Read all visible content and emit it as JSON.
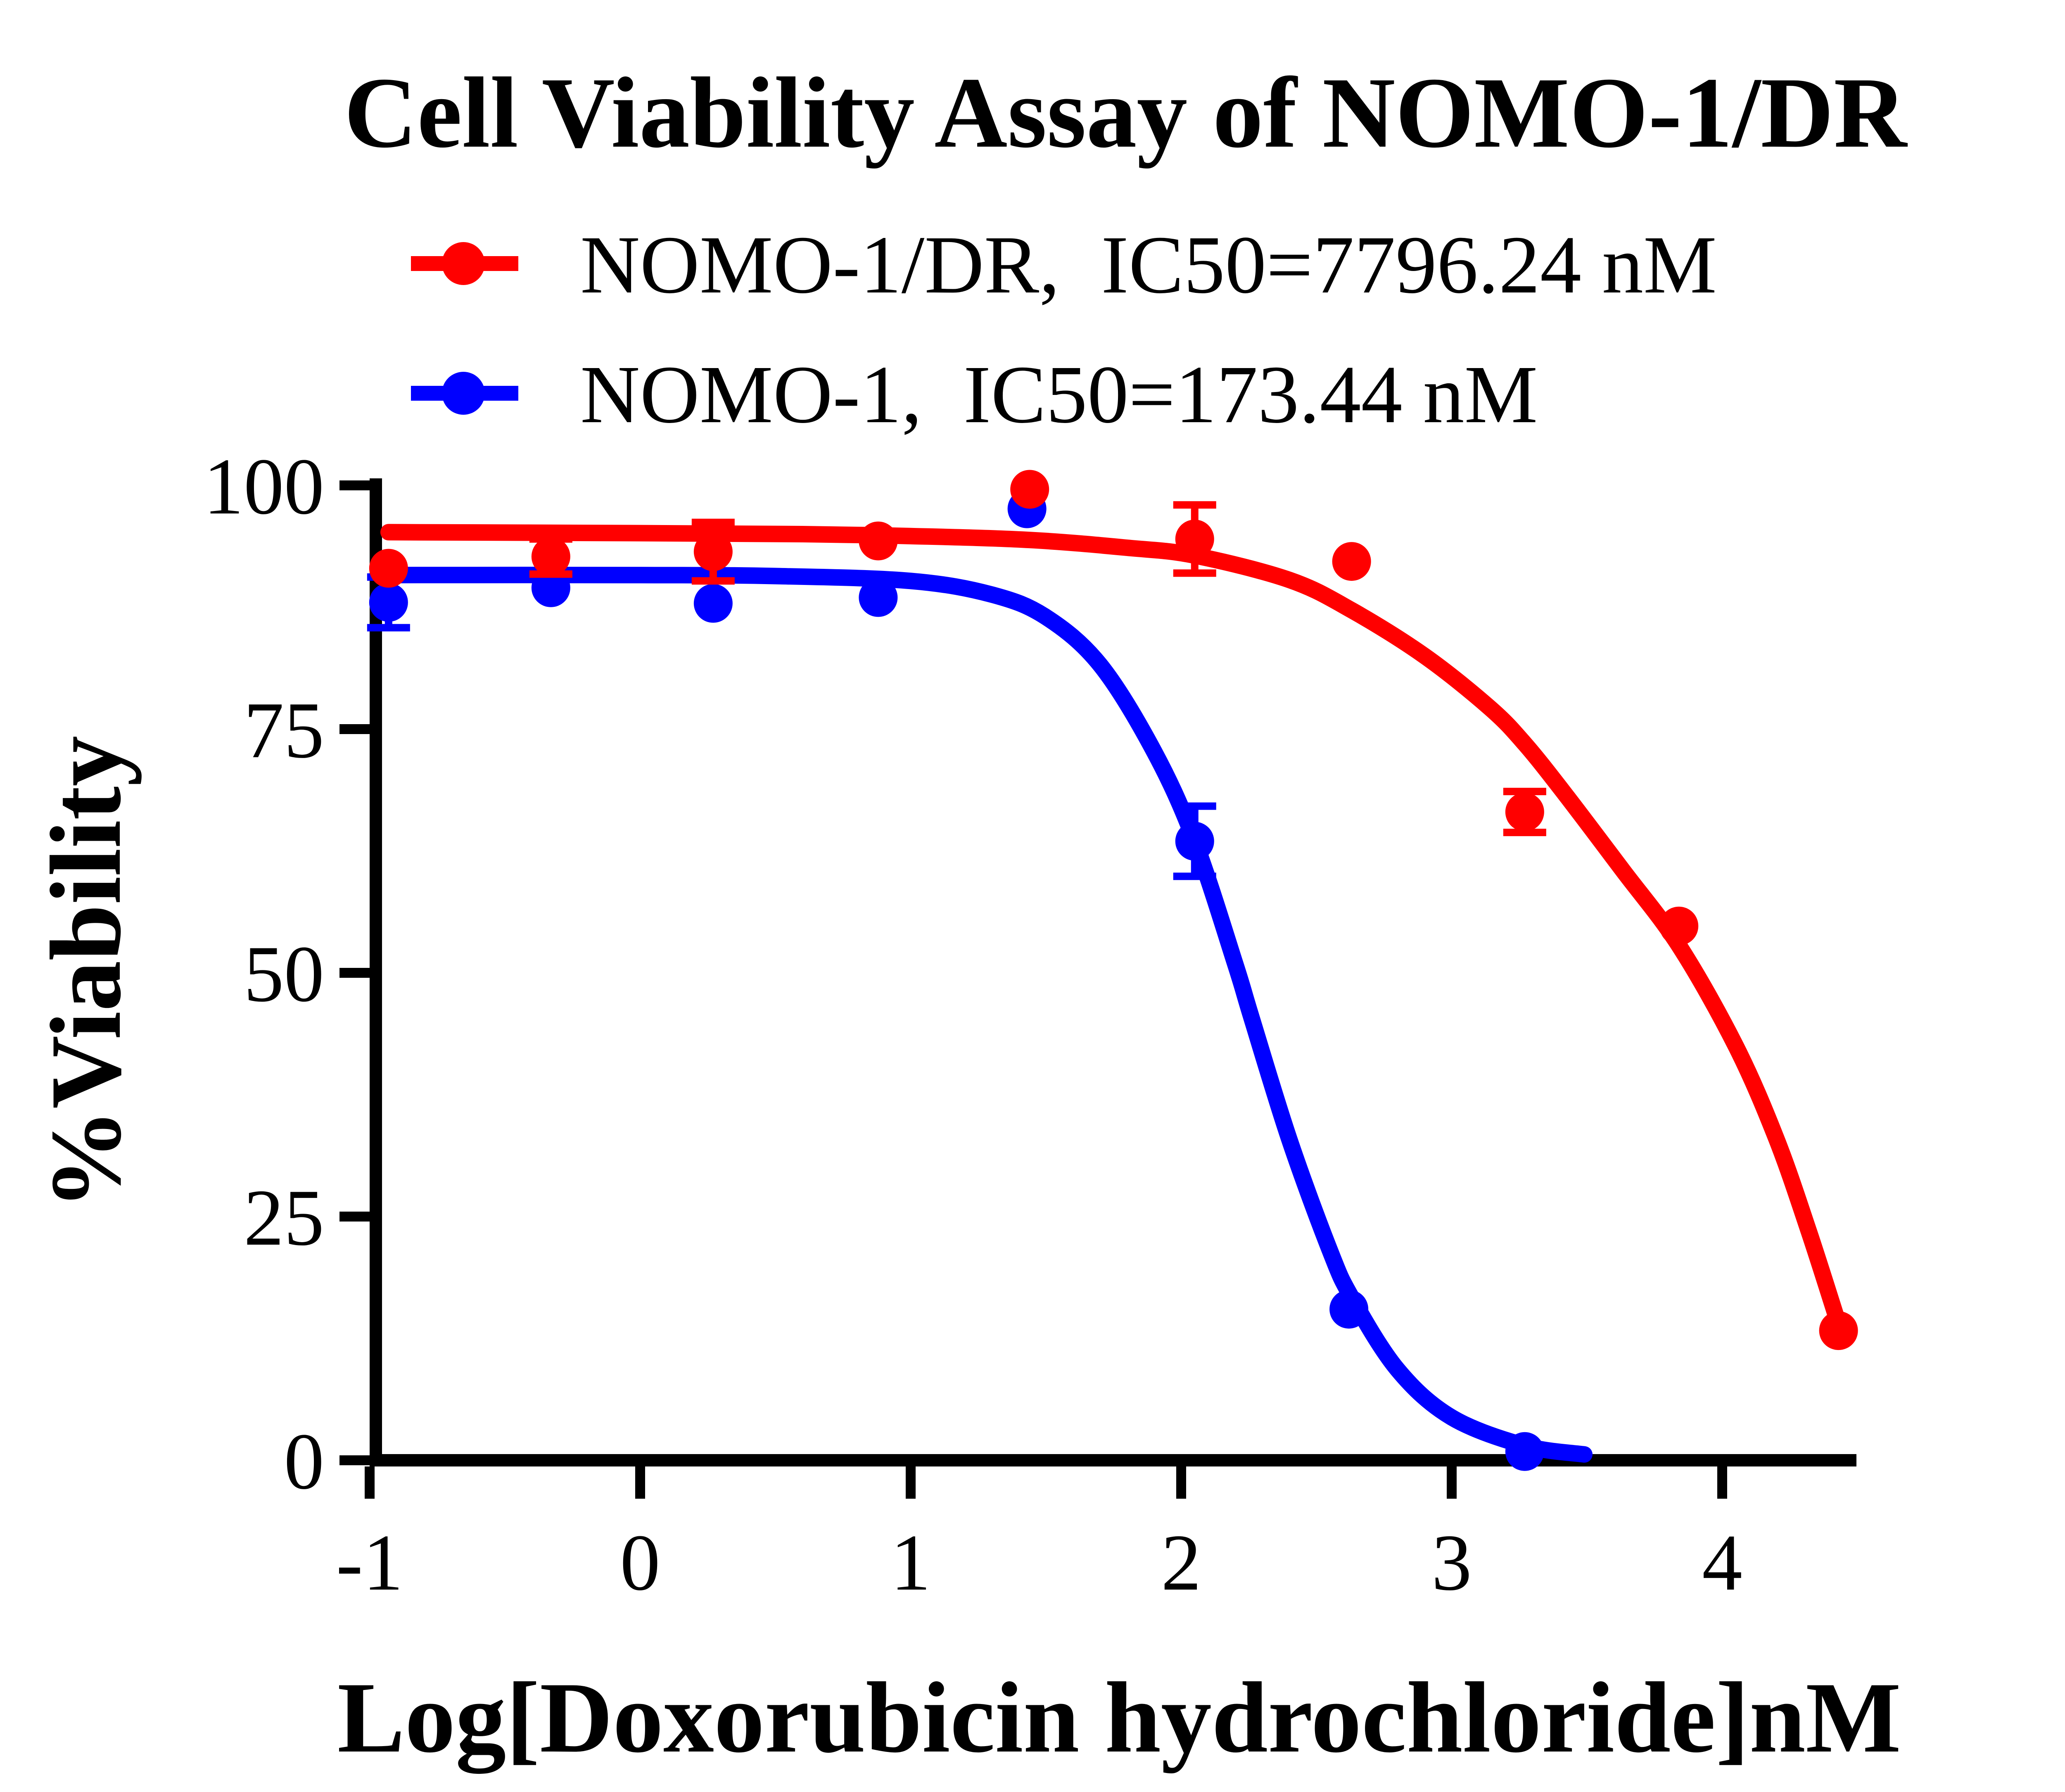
{
  "title": "Cell Viability Assay of NOMO-1/DR",
  "colors": {
    "red": "#FF0000",
    "blue": "#0000FF",
    "axis": "#000000",
    "background": "#FFFFFF"
  },
  "legend": [
    {
      "name": "NOMO-1/DR",
      "label": "NOMO-1/DR,  IC50=7796.24 nM",
      "ic50": "7796.24 nM",
      "color_key": "red"
    },
    {
      "name": "NOMO-1",
      "label": "NOMO-1,  IC50=173.44 nM",
      "ic50": "173.44 nM",
      "color_key": "blue"
    }
  ],
  "chart_data": {
    "type": "scatter",
    "title": "Cell Viability Assay of NOMO-1/DR",
    "xlabel": "Log[Doxorubicin hydrochloride]nM",
    "ylabel": "%Viability",
    "xlim": [
      -1.15,
      4.62
    ],
    "ylim": [
      0,
      100
    ],
    "x_ticks": [
      -1,
      0,
      1,
      2,
      3,
      4
    ],
    "y_ticks": [
      0,
      25,
      50,
      75,
      100
    ],
    "grid": false,
    "legend_position": "top-left",
    "series": [
      {
        "name": "NOMO-1/DR",
        "ic50_nM": 7796.24,
        "color": "#FF0000",
        "points": [
          {
            "x": -0.93,
            "y": 91.5,
            "err": 0
          },
          {
            "x": -0.33,
            "y": 92.7,
            "err": 1.8
          },
          {
            "x": 0.27,
            "y": 93.2,
            "err": 3.0
          },
          {
            "x": 0.88,
            "y": 94.3,
            "err": 0
          },
          {
            "x": 1.44,
            "y": 99.6,
            "err": 0
          },
          {
            "x": 2.05,
            "y": 94.5,
            "err": 3.5
          },
          {
            "x": 2.63,
            "y": 92.2,
            "err": 0
          },
          {
            "x": 3.27,
            "y": 66.5,
            "err": 2.1
          },
          {
            "x": 3.84,
            "y": 54.8,
            "err": 0
          },
          {
            "x": 4.43,
            "y": 13.3,
            "err": 0
          }
        ],
        "curve": [
          [
            -0.93,
            95.2
          ],
          [
            0.0,
            95.1
          ],
          [
            0.6,
            95.0
          ],
          [
            1.0,
            94.8
          ],
          [
            1.44,
            94.4
          ],
          [
            1.8,
            93.6
          ],
          [
            2.05,
            92.8
          ],
          [
            2.4,
            90.3
          ],
          [
            2.63,
            87.2
          ],
          [
            2.9,
            82.5
          ],
          [
            3.14,
            77.2
          ],
          [
            3.27,
            73.5
          ],
          [
            3.42,
            68.3
          ],
          [
            3.63,
            60.6
          ],
          [
            3.84,
            52.8
          ],
          [
            4.05,
            42.5
          ],
          [
            4.2,
            33.0
          ],
          [
            4.32,
            23.5
          ],
          [
            4.43,
            14.0
          ]
        ]
      },
      {
        "name": "NOMO-1",
        "ic50_nM": 173.44,
        "color": "#0000FF",
        "points": [
          {
            "x": -0.93,
            "y": 88.0,
            "err": 2.6
          },
          {
            "x": -0.33,
            "y": 89.5,
            "err": 0
          },
          {
            "x": 0.27,
            "y": 87.9,
            "err": 0
          },
          {
            "x": 0.88,
            "y": 88.5,
            "err": 0
          },
          {
            "x": 1.43,
            "y": 97.6,
            "err": 0
          },
          {
            "x": 2.05,
            "y": 63.5,
            "err": 3.6
          },
          {
            "x": 2.62,
            "y": 15.5,
            "err": 0
          },
          {
            "x": 3.27,
            "y": 0.9,
            "err": 0
          }
        ],
        "curve": [
          [
            -0.93,
            90.8
          ],
          [
            0.0,
            90.8
          ],
          [
            0.5,
            90.7
          ],
          [
            1.0,
            90.2
          ],
          [
            1.3,
            88.8
          ],
          [
            1.5,
            86.5
          ],
          [
            1.7,
            81.6
          ],
          [
            1.9,
            72.7
          ],
          [
            2.05,
            63.5
          ],
          [
            2.2,
            50.9
          ],
          [
            2.26,
            45.4
          ],
          [
            2.4,
            32.9
          ],
          [
            2.55,
            21.5
          ],
          [
            2.63,
            16.7
          ],
          [
            2.8,
            9.3
          ],
          [
            3.0,
            4.4
          ],
          [
            3.27,
            1.5
          ],
          [
            3.49,
            0.6
          ]
        ]
      }
    ]
  }
}
